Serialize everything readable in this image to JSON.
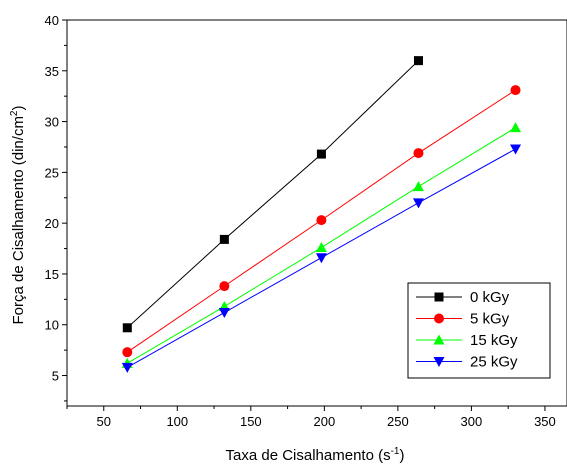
{
  "chart_data": {
    "type": "line",
    "xlabel": "Taxa de Cisalhamento (s",
    "xlabel_sup": "-1",
    "xlabel_end": ")",
    "ylabel": "Força de Cisalhamento (din/cm",
    "ylabel_sup": "2",
    "ylabel_end": ")",
    "xlim": [
      25,
      365
    ],
    "ylim": [
      2,
      40
    ],
    "xticks": [
      50,
      100,
      150,
      200,
      250,
      300,
      350
    ],
    "yticks": [
      5,
      10,
      15,
      20,
      25,
      30,
      35,
      40
    ],
    "grid": false,
    "legend_position": "bottom-right",
    "series": [
      {
        "name": "0 kGy",
        "color": "#000000",
        "marker": "square",
        "x": [
          66,
          132,
          198,
          264
        ],
        "y": [
          9.7,
          18.4,
          26.8,
          36.0
        ]
      },
      {
        "name": "5 kGy",
        "color": "#ff0000",
        "marker": "circle",
        "x": [
          66,
          132,
          198,
          264,
          330
        ],
        "y": [
          7.3,
          13.8,
          20.3,
          26.9,
          33.1
        ]
      },
      {
        "name": "15 kGy",
        "color": "#00ff00",
        "marker": "triangle-up",
        "x": [
          66,
          132,
          198,
          264,
          330
        ],
        "y": [
          6.2,
          11.8,
          17.6,
          23.6,
          29.4
        ]
      },
      {
        "name": "25 kGy",
        "color": "#0000ff",
        "marker": "triangle-down",
        "x": [
          66,
          132,
          198,
          264,
          330
        ],
        "y": [
          5.8,
          11.2,
          16.6,
          22.0,
          27.3
        ]
      }
    ]
  }
}
